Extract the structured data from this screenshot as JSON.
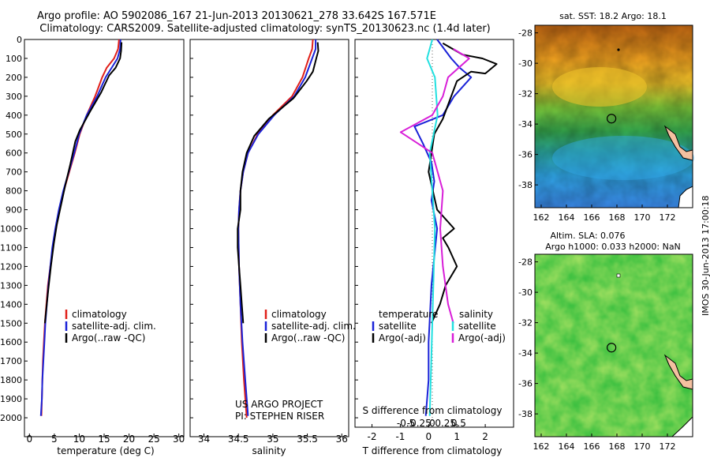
{
  "titles": {
    "line1": "Argo profile: AO 5902086_167 21-Jun-2013 20130621_278 33.642S 167.571E",
    "line2": "Climatology: CARS2009. Satellite-adjusted climatology: synTS_20130623.nc (1.4d later)"
  },
  "map_titles": {
    "sst": "sat. SST: 18.2 Argo: 18.1",
    "sla1": "Altim. SLA: 0.076",
    "sla2": "Argo h1000: 0.033 h2000: NaN"
  },
  "credits": {
    "line1": "US ARGO PROJECT",
    "line2": "PI: STEPHEN RISER"
  },
  "stamp": "IMOS 30-Jun-2013 17:00:18",
  "colors": {
    "climatology": "#e0201a",
    "satellite": "#1a22d8",
    "argo": "#000000",
    "sal_satellite": "#22e0e0",
    "sal_argo": "#d81ed8"
  },
  "chart_data": [
    {
      "type": "line",
      "id": "temperature",
      "xlabel": "temperature (deg C)",
      "ylabel": "",
      "xlim": [
        -1,
        31
      ],
      "ylim": [
        2100,
        0
      ],
      "xticks": [
        "0",
        "5",
        "10",
        "15",
        "20",
        "25",
        "30"
      ],
      "xtick_values": [
        0,
        5,
        10,
        15,
        20,
        25,
        30
      ],
      "yticks": [
        "0",
        "100",
        "200",
        "300",
        "400",
        "500",
        "600",
        "700",
        "800",
        "900",
        "1000",
        "1100",
        "1200",
        "1300",
        "1400",
        "1500",
        "1600",
        "1700",
        "1800",
        "1900",
        "2000"
      ],
      "ytick_values": [
        0,
        100,
        200,
        300,
        400,
        500,
        600,
        700,
        800,
        900,
        1000,
        1100,
        1200,
        1300,
        1400,
        1500,
        1600,
        1700,
        1800,
        1900,
        2000
      ],
      "legend": [
        "climatology",
        "satellite-adj. clim.",
        "Argo(..raw -QC)"
      ],
      "series": [
        {
          "name": "climatology",
          "color": "#e0201a",
          "points": [
            [
              18.0,
              0
            ],
            [
              17.8,
              50
            ],
            [
              17.0,
              100
            ],
            [
              15.5,
              150
            ],
            [
              14.6,
              200
            ],
            [
              13.2,
              300
            ],
            [
              11.5,
              400
            ],
            [
              10.1,
              500
            ],
            [
              9.1,
              600
            ],
            [
              8.0,
              700
            ],
            [
              6.9,
              800
            ],
            [
              6.0,
              900
            ],
            [
              5.3,
              1000
            ],
            [
              4.7,
              1100
            ],
            [
              4.2,
              1200
            ],
            [
              3.7,
              1300
            ],
            [
              3.4,
              1400
            ],
            [
              3.1,
              1500
            ],
            [
              2.9,
              1600
            ],
            [
              2.7,
              1700
            ],
            [
              2.6,
              1800
            ],
            [
              2.5,
              1900
            ],
            [
              2.4,
              1990
            ]
          ]
        },
        {
          "name": "satellite-adj. clim.",
          "color": "#1a22d8",
          "points": [
            [
              18.3,
              0
            ],
            [
              18.2,
              50
            ],
            [
              17.7,
              100
            ],
            [
              16.5,
              150
            ],
            [
              15.3,
              200
            ],
            [
              13.6,
              300
            ],
            [
              11.5,
              400
            ],
            [
              10.0,
              500
            ],
            [
              9.0,
              600
            ],
            [
              7.9,
              700
            ],
            [
              6.8,
              800
            ],
            [
              5.9,
              900
            ],
            [
              5.2,
              1000
            ],
            [
              4.6,
              1100
            ],
            [
              4.2,
              1200
            ],
            [
              3.8,
              1300
            ],
            [
              3.5,
              1400
            ],
            [
              3.2,
              1500
            ],
            [
              3.0,
              1600
            ],
            [
              2.8,
              1700
            ],
            [
              2.6,
              1800
            ],
            [
              2.5,
              1900
            ],
            [
              2.3,
              1990
            ]
          ]
        },
        {
          "name": "Argo(..raw -QC)",
          "color": "#000000",
          "points": [
            [
              18.5,
              15
            ],
            [
              18.4,
              60
            ],
            [
              18.2,
              100
            ],
            [
              17.3,
              150
            ],
            [
              16.0,
              190
            ],
            [
              14.4,
              280
            ],
            [
              12.2,
              380
            ],
            [
              10.1,
              480
            ],
            [
              9.2,
              540
            ],
            [
              8.2,
              660
            ],
            [
              7.2,
              770
            ],
            [
              6.3,
              880
            ],
            [
              5.5,
              980
            ],
            [
              4.9,
              1080
            ],
            [
              4.3,
              1200
            ],
            [
              3.8,
              1320
            ],
            [
              3.4,
              1420
            ],
            [
              3.1,
              1500
            ]
          ]
        }
      ]
    },
    {
      "type": "line",
      "id": "salinity",
      "xlabel": "salinity",
      "ylabel": "",
      "xlim": [
        33.8,
        36.1
      ],
      "ylim": [
        2100,
        0
      ],
      "xticks": [
        "34",
        "34.5",
        "35",
        "35.5",
        "36"
      ],
      "xtick_values": [
        34,
        34.5,
        35,
        35.5,
        36
      ],
      "legend": [
        "climatology",
        "satellite-adj. clim.",
        "Argo(..raw -QC)"
      ],
      "series": [
        {
          "name": "climatology",
          "color": "#e0201a",
          "points": [
            [
              35.58,
              0
            ],
            [
              35.57,
              50
            ],
            [
              35.52,
              100
            ],
            [
              35.43,
              200
            ],
            [
              35.28,
              300
            ],
            [
              35.0,
              400
            ],
            [
              34.78,
              500
            ],
            [
              34.64,
              600
            ],
            [
              34.57,
              700
            ],
            [
              34.53,
              800
            ],
            [
              34.51,
              900
            ],
            [
              34.5,
              1000
            ],
            [
              34.51,
              1200
            ],
            [
              34.53,
              1400
            ],
            [
              34.55,
              1600
            ],
            [
              34.58,
              1800
            ],
            [
              34.62,
              2000
            ]
          ]
        },
        {
          "name": "satellite-adj. clim.",
          "color": "#1a22d8",
          "points": [
            [
              35.62,
              0
            ],
            [
              35.62,
              50
            ],
            [
              35.57,
              100
            ],
            [
              35.47,
              200
            ],
            [
              35.31,
              300
            ],
            [
              35.02,
              400
            ],
            [
              34.79,
              500
            ],
            [
              34.64,
              600
            ],
            [
              34.57,
              700
            ],
            [
              34.53,
              800
            ],
            [
              34.51,
              900
            ],
            [
              34.5,
              1000
            ],
            [
              34.51,
              1200
            ],
            [
              34.53,
              1400
            ],
            [
              34.56,
              1600
            ],
            [
              34.6,
              1800
            ],
            [
              34.64,
              1990
            ]
          ]
        },
        {
          "name": "Argo(..raw -QC)",
          "color": "#000000",
          "points": [
            [
              35.65,
              15
            ],
            [
              35.66,
              60
            ],
            [
              35.63,
              100
            ],
            [
              35.58,
              170
            ],
            [
              35.49,
              220
            ],
            [
              35.3,
              310
            ],
            [
              34.94,
              420
            ],
            [
              34.73,
              510
            ],
            [
              34.62,
              600
            ],
            [
              34.56,
              700
            ],
            [
              34.53,
              800
            ],
            [
              34.53,
              900
            ],
            [
              34.49,
              1000
            ],
            [
              34.49,
              1100
            ],
            [
              34.51,
              1200
            ],
            [
              34.53,
              1300
            ],
            [
              34.55,
              1400
            ],
            [
              34.57,
              1500
            ]
          ]
        }
      ]
    },
    {
      "type": "line",
      "id": "difference",
      "xlabel": "T difference from climatology",
      "xlabel_top": "S difference from climatology",
      "xlim": [
        -2.6,
        3.0
      ],
      "ylim": [
        2100,
        0
      ],
      "xticks": [
        "-2",
        "-1",
        "0",
        "1",
        "2"
      ],
      "xtick_values": [
        -2,
        -1,
        0,
        1,
        2
      ],
      "sticks": [
        "-0.5",
        "-0.25",
        "0",
        "0.25",
        "0.5"
      ],
      "stick_values": [
        -0.5,
        -0.25,
        0,
        0.25,
        0.5
      ],
      "legend_titles": [
        "temperature",
        "salinity"
      ],
      "legend": [
        "satellite",
        "Argo(-adj)",
        "satellite",
        "Argo(-adj)"
      ],
      "series": [
        {
          "name": "satellite",
          "group": "temperature",
          "color": "#1a22d8",
          "points": [
            [
              0.3,
              0
            ],
            [
              0.8,
              100
            ],
            [
              1.1,
              150
            ],
            [
              1.5,
              200
            ],
            [
              0.9,
              300
            ],
            [
              0.5,
              400
            ],
            [
              -0.5,
              460
            ],
            [
              -0.2,
              550
            ],
            [
              0.1,
              650
            ],
            [
              0.2,
              750
            ],
            [
              0.1,
              850
            ],
            [
              0.3,
              1000
            ],
            [
              0.1,
              1300
            ],
            [
              0.0,
              1600
            ],
            [
              0.0,
              1800
            ],
            [
              -0.1,
              1990
            ]
          ]
        },
        {
          "name": "Argo(-adj)",
          "group": "temperature",
          "color": "#000000",
          "points": [
            [
              0.5,
              20
            ],
            [
              1.2,
              80
            ],
            [
              1.9,
              100
            ],
            [
              2.4,
              130
            ],
            [
              2.0,
              180
            ],
            [
              1.5,
              170
            ],
            [
              1.0,
              220
            ],
            [
              0.8,
              300
            ],
            [
              0.5,
              420
            ],
            [
              0.2,
              500
            ],
            [
              0.0,
              700
            ],
            [
              0.3,
              900
            ],
            [
              0.9,
              1000
            ],
            [
              0.5,
              1050
            ],
            [
              0.7,
              1100
            ],
            [
              1.0,
              1200
            ],
            [
              0.6,
              1300
            ],
            [
              0.4,
              1400
            ],
            [
              0.1,
              1500
            ]
          ]
        },
        {
          "name": "satellite",
          "group": "salinity",
          "color": "#22e0e0",
          "points": [
            [
              0.0,
              0
            ],
            [
              -0.1,
              100
            ],
            [
              0.05,
              200
            ],
            [
              0.1,
              400
            ],
            [
              -0.05,
              600
            ],
            [
              0.0,
              800
            ],
            [
              0.05,
              1000
            ],
            [
              0.0,
              1500
            ],
            [
              -0.05,
              1990
            ]
          ]
        },
        {
          "name": "Argo(-adj)",
          "group": "salinity",
          "color": "#d81ed8",
          "points": [
            [
              0.4,
              50
            ],
            [
              0.7,
              100
            ],
            [
              0.5,
              150
            ],
            [
              0.3,
              200
            ],
            [
              0.2,
              300
            ],
            [
              0.0,
              400
            ],
            [
              -0.6,
              490
            ],
            [
              0.0,
              600
            ],
            [
              0.2,
              800
            ],
            [
              0.15,
              1000
            ],
            [
              0.2,
              1200
            ],
            [
              0.3,
              1400
            ],
            [
              0.4,
              1500
            ]
          ]
        }
      ]
    },
    {
      "type": "heatmap",
      "id": "sst_map",
      "xticks": [
        "162",
        "164",
        "166",
        "168",
        "170",
        "172"
      ],
      "yticks": [
        "-28",
        "-30",
        "-32",
        "-34",
        "-36",
        "-38"
      ],
      "xlim": [
        161.5,
        174
      ],
      "ylim": [
        -39.5,
        -27.5
      ],
      "argo_position": [
        167.571,
        -33.642
      ]
    },
    {
      "type": "heatmap",
      "id": "sla_map",
      "xticks": [
        "162",
        "164",
        "166",
        "168",
        "170",
        "172"
      ],
      "yticks": [
        "-28",
        "-30",
        "-32",
        "-34",
        "-36",
        "-38"
      ],
      "xlim": [
        161.5,
        174
      ],
      "ylim": [
        -39.5,
        -27.5
      ],
      "argo_position": [
        167.571,
        -33.642
      ]
    }
  ]
}
